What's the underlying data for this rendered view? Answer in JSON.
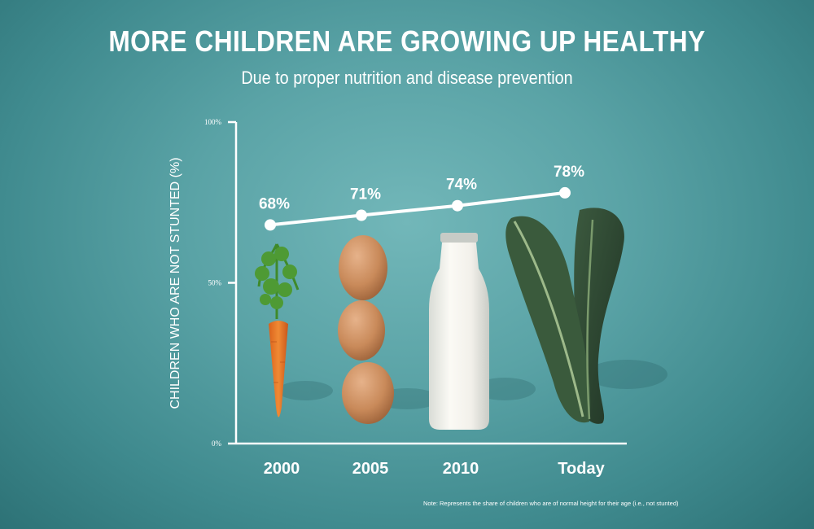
{
  "header": {
    "title": "MORE CHILDREN ARE GROWING UP HEALTHY",
    "subtitle": "Due to proper nutrition and disease prevention"
  },
  "note": "Note: Represents the share of children who are of normal height for their age (i.e., not stunted)",
  "illustrations": [
    "carrot-icon",
    "eggs-icon",
    "milk-bottle-icon",
    "kale-icon"
  ],
  "colors": {
    "background": "#5aa3a6",
    "line": "#ffffff",
    "carrot": "#e8782a",
    "egg": "#c98a5a",
    "milk": "#f4f1ea",
    "kale": "#2f4a33"
  },
  "chart_data": {
    "type": "line",
    "title": "MORE CHILDREN ARE GROWING UP HEALTHY",
    "subtitle": "Due to proper nutrition and disease prevention",
    "xlabel": "",
    "ylabel": "CHILDREN WHO ARE NOT STUNTED (%)",
    "categories": [
      "2000",
      "2005",
      "2010",
      "Today"
    ],
    "values": [
      68,
      71,
      74,
      78
    ],
    "data_labels": [
      "68%",
      "71%",
      "74%",
      "78%"
    ],
    "ylim": [
      0,
      100
    ],
    "yticks": [
      0,
      50,
      100
    ],
    "ytick_labels": [
      "0%",
      "50%",
      "100%"
    ],
    "grid": false,
    "legend": "none"
  }
}
